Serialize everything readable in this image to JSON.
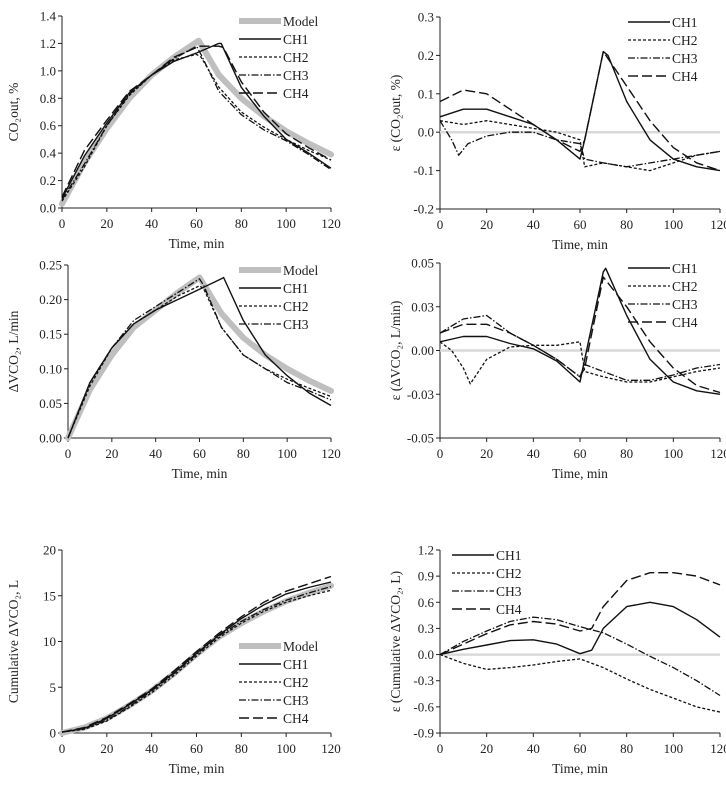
{
  "styles": {
    "Model": {
      "color": "#bfbfbf",
      "dash": "",
      "width": 6
    },
    "CH1": {
      "color": "#111111",
      "dash": "",
      "width": 1.4
    },
    "CH2": {
      "color": "#111111",
      "dash": "3,2",
      "width": 1.3
    },
    "CH3": {
      "color": "#111111",
      "dash": "7,2,1.5,2",
      "width": 1.3
    },
    "CH4": {
      "color": "#111111",
      "dash": "10,4",
      "width": 1.4
    },
    "zero": {
      "color": "#d9d9d9",
      "dash": "",
      "width": 2.5
    }
  },
  "chart_data": [
    {
      "type": "line",
      "xlabel": "Time, min",
      "ylabel": "CO₂out, %",
      "xlim": [
        0,
        120
      ],
      "ylim": [
        0,
        1.4
      ],
      "xticks": [
        "0",
        "20",
        "40",
        "60",
        "80",
        "100",
        "120"
      ],
      "yticks": [
        0,
        0.2,
        0.4,
        0.6,
        0.8,
        1.0,
        1.2,
        1.4
      ],
      "ytick_labels": [
        "0.0",
        "0.2",
        "0.4",
        "0.6",
        "0.8",
        "1.0",
        "1.2",
        "1.4"
      ],
      "legend": "top-right",
      "series": [
        {
          "name": "Model",
          "x": [
            0,
            10,
            20,
            30,
            40,
            50,
            60,
            61,
            70,
            80,
            90,
            100,
            110,
            120
          ],
          "y": [
            0.03,
            0.33,
            0.58,
            0.8,
            0.97,
            1.1,
            1.21,
            1.22,
            0.97,
            0.8,
            0.67,
            0.56,
            0.47,
            0.39
          ]
        },
        {
          "name": "CH1",
          "x": [
            0,
            10,
            20,
            30,
            40,
            50,
            60,
            70,
            71,
            80,
            90,
            100,
            110,
            120
          ],
          "y": [
            0.07,
            0.38,
            0.62,
            0.84,
            0.97,
            1.07,
            1.13,
            1.2,
            1.2,
            0.88,
            0.67,
            0.5,
            0.4,
            0.29
          ]
        },
        {
          "name": "CH2",
          "x": [
            0,
            10,
            20,
            30,
            40,
            50,
            60,
            62,
            70,
            80,
            90,
            100,
            110,
            120
          ],
          "y": [
            0.05,
            0.3,
            0.6,
            0.82,
            0.97,
            1.08,
            1.12,
            1.1,
            0.88,
            0.7,
            0.59,
            0.5,
            0.42,
            0.35
          ]
        },
        {
          "name": "CH3",
          "x": [
            0,
            10,
            20,
            30,
            40,
            50,
            60,
            62,
            70,
            80,
            90,
            100,
            110,
            120
          ],
          "y": [
            0.06,
            0.32,
            0.6,
            0.83,
            0.97,
            1.09,
            1.18,
            1.12,
            0.85,
            0.68,
            0.57,
            0.49,
            0.39,
            0.28
          ]
        },
        {
          "name": "CH4",
          "x": [
            0,
            10,
            20,
            30,
            40,
            50,
            60,
            61,
            70,
            72,
            80,
            90,
            100,
            110,
            120
          ],
          "y": [
            0.08,
            0.42,
            0.64,
            0.85,
            0.97,
            1.1,
            1.17,
            1.18,
            1.18,
            1.17,
            0.92,
            0.7,
            0.54,
            0.44,
            0.35
          ]
        }
      ]
    },
    {
      "type": "line",
      "xlabel": "Time, min",
      "ylabel": "ε (CO₂out, %)",
      "xlim": [
        0,
        120
      ],
      "ylim": [
        -0.2,
        0.3
      ],
      "zero_line": true,
      "xticks": [
        "0",
        "20",
        "40",
        "60",
        "80",
        "100",
        "120"
      ],
      "yticks": [
        -0.2,
        -0.1,
        0,
        0.1,
        0.2,
        0.3
      ],
      "ytick_labels": [
        "-0.2",
        "-0.1",
        "0.0",
        "0.1",
        "0.2",
        "0.3"
      ],
      "legend": "top-right",
      "series": [
        {
          "name": "CH1",
          "x": [
            0,
            10,
            20,
            30,
            40,
            50,
            60,
            62,
            70,
            72,
            80,
            90,
            100,
            110,
            120
          ],
          "y": [
            0.04,
            0.06,
            0.06,
            0.04,
            0.02,
            -0.02,
            -0.07,
            -0.02,
            0.21,
            0.2,
            0.08,
            -0.02,
            -0.07,
            -0.09,
            -0.1
          ]
        },
        {
          "name": "CH2",
          "x": [
            0,
            10,
            20,
            30,
            40,
            50,
            60,
            62,
            70,
            80,
            90,
            100,
            110,
            120
          ],
          "y": [
            0.03,
            0.02,
            0.03,
            0.02,
            0.01,
            0,
            -0.02,
            -0.09,
            -0.08,
            -0.09,
            -0.1,
            -0.08,
            -0.06,
            -0.05
          ]
        },
        {
          "name": "CH3",
          "x": [
            0,
            5,
            8,
            12,
            20,
            30,
            40,
            50,
            60,
            62,
            70,
            80,
            90,
            100,
            110,
            120
          ],
          "y": [
            0.03,
            -0.02,
            -0.06,
            -0.03,
            -0.01,
            0,
            0,
            -0.02,
            -0.03,
            -0.07,
            -0.08,
            -0.09,
            -0.08,
            -0.07,
            -0.06,
            -0.05
          ]
        },
        {
          "name": "CH4",
          "x": [
            0,
            10,
            20,
            30,
            40,
            50,
            60,
            62,
            70,
            80,
            90,
            100,
            110,
            120
          ],
          "y": [
            0.08,
            0.11,
            0.1,
            0.06,
            0.02,
            -0.02,
            -0.05,
            -0.02,
            0.21,
            0.12,
            0.03,
            -0.04,
            -0.08,
            -0.1
          ]
        }
      ]
    },
    {
      "type": "line",
      "xlabel": "Time, min",
      "ylabel": "ΔVCO₂, L/min",
      "xlim": [
        0,
        120
      ],
      "ylim": [
        0,
        0.25
      ],
      "xticks": [
        "0",
        "20",
        "40",
        "60",
        "80",
        "100",
        "120"
      ],
      "yticks": [
        0,
        0.05,
        0.1,
        0.15,
        0.2,
        0.25
      ],
      "ytick_labels": [
        "0.00",
        "0.05",
        "0.10",
        "0.15",
        "0.20",
        "0.25"
      ],
      "legend": "top-right",
      "series": [
        {
          "name": "Model",
          "x": [
            0,
            10,
            20,
            30,
            40,
            50,
            60,
            70,
            80,
            90,
            100,
            110,
            120
          ],
          "y": [
            0,
            0.07,
            0.12,
            0.16,
            0.185,
            0.21,
            0.232,
            0.18,
            0.145,
            0.12,
            0.1,
            0.083,
            0.068
          ]
        },
        {
          "name": "CH1",
          "x": [
            0,
            10,
            20,
            30,
            40,
            50,
            60,
            70,
            71,
            80,
            90,
            100,
            110,
            120
          ],
          "y": [
            0,
            0.08,
            0.13,
            0.165,
            0.185,
            0.2,
            0.215,
            0.23,
            0.232,
            0.17,
            0.12,
            0.09,
            0.065,
            0.047
          ]
        },
        {
          "name": "CH2",
          "x": [
            0,
            10,
            20,
            30,
            40,
            50,
            60,
            62,
            70,
            80,
            90,
            100,
            110,
            120
          ],
          "y": [
            0,
            0.075,
            0.13,
            0.165,
            0.185,
            0.205,
            0.22,
            0.215,
            0.16,
            0.12,
            0.1,
            0.085,
            0.072,
            0.06
          ]
        },
        {
          "name": "CH3",
          "x": [
            0,
            10,
            20,
            30,
            40,
            50,
            60,
            62,
            70,
            80,
            90,
            100,
            110,
            120
          ],
          "y": [
            0,
            0.08,
            0.13,
            0.17,
            0.19,
            0.21,
            0.23,
            0.22,
            0.16,
            0.12,
            0.1,
            0.08,
            0.068,
            0.055
          ]
        }
      ]
    },
    {
      "type": "line",
      "xlabel": "Time, min",
      "ylabel": "ε (ΔVCO₂, L/min)",
      "xlim": [
        0,
        120
      ],
      "ylim": [
        -0.05,
        0.05
      ],
      "zero_line": true,
      "xticks": [
        "0",
        "20",
        "40",
        "60",
        "80",
        "100",
        "120"
      ],
      "yticks": [
        -0.05,
        -0.025,
        0,
        0.025,
        0.05
      ],
      "ytick_labels": [
        "-0.05",
        "-0.03",
        "0.00",
        "0.03",
        "0.05"
      ],
      "legend": "top-right",
      "series": [
        {
          "name": "CH1",
          "x": [
            0,
            10,
            20,
            30,
            40,
            50,
            60,
            62,
            70,
            71,
            80,
            90,
            100,
            110,
            120
          ],
          "y": [
            0.005,
            0.008,
            0.008,
            0.004,
            0.001,
            -0.006,
            -0.018,
            -0.005,
            0.045,
            0.047,
            0.02,
            -0.005,
            -0.018,
            -0.023,
            -0.025
          ]
        },
        {
          "name": "CH2",
          "x": [
            0,
            5,
            10,
            13,
            20,
            30,
            40,
            50,
            60,
            62,
            70,
            80,
            90,
            100,
            110,
            120
          ],
          "y": [
            0.005,
            0,
            -0.01,
            -0.019,
            -0.005,
            0.002,
            0.003,
            0.003,
            0.005,
            -0.012,
            -0.015,
            -0.018,
            -0.018,
            -0.015,
            -0.012,
            -0.01
          ]
        },
        {
          "name": "CH3",
          "x": [
            0,
            10,
            20,
            30,
            40,
            50,
            60,
            62,
            70,
            80,
            90,
            100,
            110,
            120
          ],
          "y": [
            0.01,
            0.018,
            0.02,
            0.01,
            0.003,
            -0.005,
            -0.015,
            -0.008,
            -0.012,
            -0.017,
            -0.017,
            -0.014,
            -0.01,
            -0.008
          ]
        },
        {
          "name": "CH4",
          "x": [
            0,
            10,
            20,
            30,
            40,
            50,
            60,
            62,
            70,
            80,
            90,
            100,
            110,
            120
          ],
          "y": [
            0.01,
            0.015,
            0.015,
            0.01,
            0.003,
            -0.005,
            -0.015,
            -0.01,
            0.042,
            0.025,
            0.005,
            -0.01,
            -0.02,
            -0.024
          ]
        }
      ]
    },
    {
      "type": "line",
      "xlabel": "Time, min",
      "ylabel": "Cumulative ΔVCO₂, L",
      "xlim": [
        0,
        120
      ],
      "ylim": [
        0,
        20
      ],
      "xticks": [
        "0",
        "20",
        "40",
        "60",
        "80",
        "100",
        "120"
      ],
      "yticks": [
        0,
        5,
        10,
        15,
        20
      ],
      "ytick_labels": [
        "0",
        "5",
        "10",
        "15",
        "20"
      ],
      "legend": "bottom-right",
      "series": [
        {
          "name": "Model",
          "x": [
            0,
            10,
            20,
            30,
            40,
            50,
            60,
            70,
            80,
            90,
            100,
            110,
            120
          ],
          "y": [
            0,
            0.6,
            1.6,
            3,
            4.6,
            6.5,
            8.6,
            10.5,
            12,
            13.3,
            14.4,
            15.3,
            16.1
          ]
        },
        {
          "name": "CH1",
          "x": [
            0,
            10,
            20,
            30,
            40,
            50,
            60,
            70,
            80,
            90,
            100,
            110,
            120
          ],
          "y": [
            0.1,
            0.5,
            1.6,
            3.1,
            4.7,
            6.6,
            8.7,
            10.7,
            12.5,
            14,
            15.2,
            15.9,
            16.5
          ]
        },
        {
          "name": "CH2",
          "x": [
            0,
            10,
            20,
            30,
            40,
            50,
            60,
            70,
            80,
            90,
            100,
            110,
            120
          ],
          "y": [
            0.1,
            0.4,
            1.3,
            2.8,
            4.4,
            6.3,
            8.4,
            10.4,
            12,
            13.3,
            14.3,
            15,
            15.6
          ]
        },
        {
          "name": "CH3",
          "x": [
            0,
            10,
            20,
            30,
            40,
            50,
            60,
            70,
            80,
            90,
            100,
            110,
            120
          ],
          "y": [
            0.1,
            0.5,
            1.4,
            2.9,
            4.6,
            6.5,
            8.6,
            10.6,
            12.2,
            13.5,
            14.5,
            15.3,
            16
          ]
        },
        {
          "name": "CH4",
          "x": [
            0,
            10,
            20,
            30,
            40,
            50,
            60,
            70,
            80,
            90,
            100,
            110,
            120
          ],
          "y": [
            0.1,
            0.6,
            1.7,
            3.2,
            4.8,
            6.8,
            8.9,
            10.9,
            12.7,
            14.3,
            15.5,
            16.3,
            17.1
          ]
        }
      ]
    },
    {
      "type": "line",
      "xlabel": "Time, min",
      "ylabel": "ε (Cumulative ΔVCO₂, L)",
      "xlim": [
        0,
        120
      ],
      "ylim": [
        -0.9,
        1.2
      ],
      "zero_line": true,
      "xticks": [
        "0",
        "20",
        "40",
        "60",
        "80",
        "100",
        "120"
      ],
      "yticks": [
        -0.9,
        -0.6,
        -0.3,
        0,
        0.3,
        0.6,
        0.9,
        1.2
      ],
      "ytick_labels": [
        "-0.9",
        "-0.6",
        "-0.3",
        "0.0",
        "0.3",
        "0.6",
        "0.9",
        "1.2"
      ],
      "legend": "top-left",
      "series": [
        {
          "name": "CH1",
          "x": [
            0,
            10,
            20,
            30,
            40,
            50,
            60,
            65,
            70,
            80,
            90,
            100,
            110,
            120
          ],
          "y": [
            0,
            0.06,
            0.11,
            0.16,
            0.17,
            0.12,
            0.01,
            0.05,
            0.3,
            0.55,
            0.6,
            0.55,
            0.4,
            0.2
          ]
        },
        {
          "name": "CH2",
          "x": [
            0,
            10,
            20,
            30,
            40,
            50,
            60,
            70,
            80,
            90,
            100,
            110,
            120
          ],
          "y": [
            0,
            -0.1,
            -0.17,
            -0.15,
            -0.12,
            -0.08,
            -0.05,
            -0.15,
            -0.28,
            -0.4,
            -0.5,
            -0.6,
            -0.66
          ]
        },
        {
          "name": "CH3",
          "x": [
            0,
            10,
            20,
            30,
            40,
            50,
            60,
            70,
            80,
            90,
            100,
            110,
            120
          ],
          "y": [
            0,
            0.15,
            0.27,
            0.38,
            0.43,
            0.4,
            0.32,
            0.25,
            0.12,
            -0.02,
            -0.15,
            -0.3,
            -0.47
          ]
        },
        {
          "name": "CH4",
          "x": [
            0,
            10,
            20,
            30,
            40,
            50,
            60,
            65,
            70,
            80,
            90,
            100,
            110,
            120
          ],
          "y": [
            0,
            0.12,
            0.24,
            0.34,
            0.38,
            0.35,
            0.27,
            0.3,
            0.55,
            0.85,
            0.94,
            0.94,
            0.9,
            0.8
          ]
        }
      ]
    }
  ]
}
